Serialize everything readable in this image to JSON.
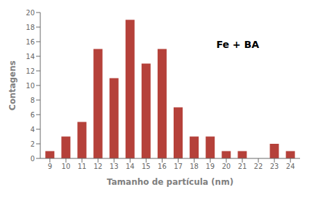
{
  "chart_data": {
    "type": "bar",
    "x": [
      9,
      10,
      11,
      12,
      13,
      14,
      15,
      16,
      17,
      18,
      19,
      20,
      21,
      22,
      23,
      24
    ],
    "values": [
      1,
      3,
      5,
      15,
      11,
      19,
      13,
      15,
      7,
      3,
      3,
      1,
      1,
      0,
      2,
      1
    ],
    "color": "#b5413a",
    "xlabel": "Tamanho de partícula (nm)",
    "ylabel": "Contagens",
    "annotation": "Fe + BA",
    "xlim": [
      8.4,
      24.6
    ],
    "xticks": [
      9,
      10,
      11,
      12,
      13,
      14,
      15,
      16,
      17,
      18,
      19,
      20,
      21,
      22,
      23,
      24
    ],
    "ylim": [
      0,
      20
    ],
    "yticks": [
      0,
      2,
      4,
      6,
      8,
      10,
      12,
      14,
      16,
      18,
      20
    ],
    "grid": false
  }
}
